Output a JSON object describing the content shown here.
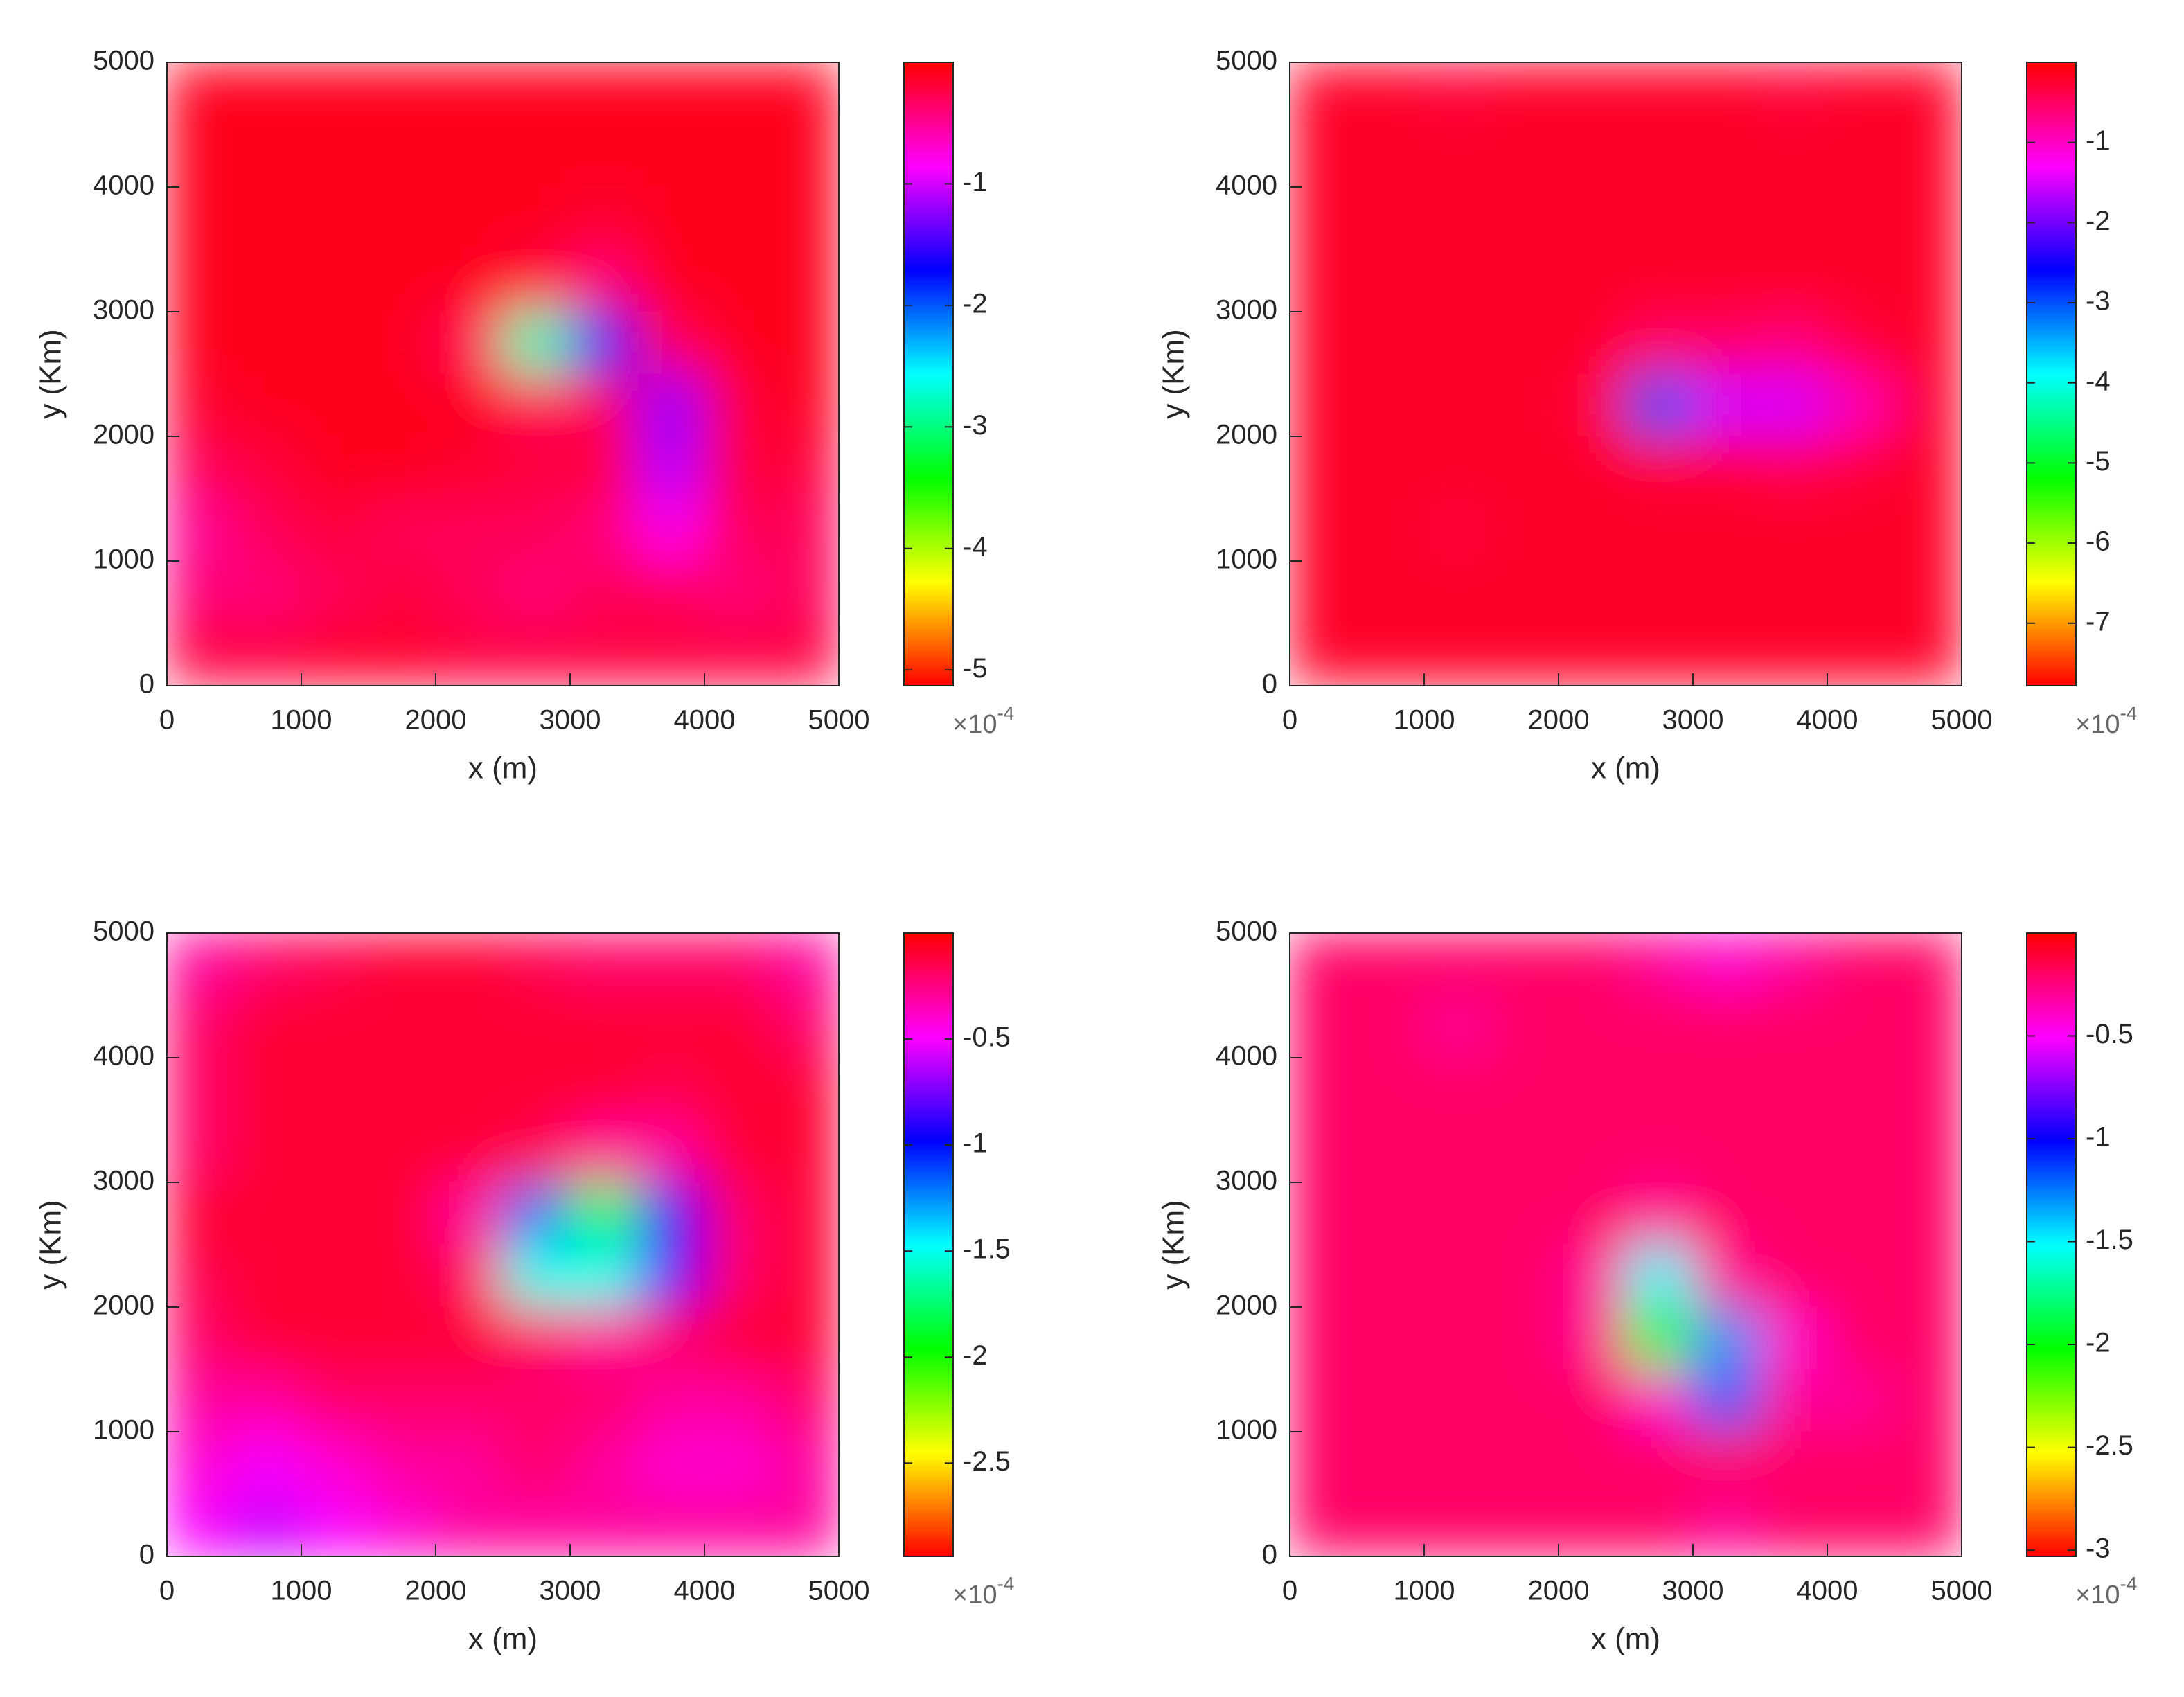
{
  "chart_data": [
    {
      "type": "heatmap",
      "x_label": "x (m)",
      "y_label": "y (Km)",
      "colormap": "hsv",
      "xlim": [
        0,
        5000
      ],
      "ylim": [
        0,
        5000
      ],
      "xticks": [
        0,
        1000,
        2000,
        3000,
        4000,
        5000
      ],
      "yticks": [
        0,
        1000,
        2000,
        3000,
        4000,
        5000
      ],
      "clim": [
        -5.13,
        0
      ],
      "cticks": [
        -1,
        -2,
        -3,
        -4,
        -5
      ],
      "colorbar_multiplier": "×10",
      "colorbar_exponent": "-4",
      "z": [
        [
          -0.1,
          -0.1,
          -0.1,
          -0.1,
          -0.1,
          -0.1,
          -0.1,
          -0.1,
          -0.1,
          -0.1
        ],
        [
          -0.1,
          -0.1,
          -0.1,
          -0.1,
          -0.1,
          -0.1,
          -0.1,
          -0.1,
          -0.1,
          -0.1
        ],
        [
          -0.1,
          -0.1,
          -0.1,
          -0.1,
          -0.1,
          -0.1,
          -0.15,
          -0.1,
          -0.1,
          -0.1
        ],
        [
          -0.1,
          -0.1,
          -0.1,
          -0.1,
          -0.1,
          -0.2,
          -0.4,
          -0.1,
          -0.1,
          -0.1
        ],
        [
          -0.1,
          -0.1,
          -0.1,
          -0.1,
          -0.3,
          -2.8,
          -1.8,
          -0.3,
          -0.1,
          -0.1
        ],
        [
          -0.15,
          -0.1,
          -0.1,
          -0.1,
          -0.1,
          -0.3,
          -0.3,
          -1.2,
          -0.2,
          -0.1
        ],
        [
          -0.3,
          -0.2,
          -0.1,
          -0.1,
          -0.15,
          -0.2,
          -0.2,
          -1.1,
          -0.2,
          -0.2
        ],
        [
          -0.5,
          -0.3,
          -0.2,
          -0.3,
          -0.3,
          -0.3,
          -0.4,
          -0.8,
          -0.3,
          -0.3
        ],
        [
          -0.4,
          -0.4,
          -0.3,
          -0.2,
          -0.3,
          -0.4,
          -0.3,
          -0.3,
          -0.4,
          -0.3
        ],
        [
          -0.2,
          -0.2,
          -0.15,
          -0.15,
          -0.2,
          -0.2,
          -0.2,
          -0.2,
          -0.2,
          -0.2
        ]
      ]
    },
    {
      "type": "heatmap",
      "x_label": "x (m)",
      "y_label": "y (Km)",
      "colormap": "hsv",
      "xlim": [
        0,
        5000
      ],
      "ylim": [
        0,
        5000
      ],
      "xticks": [
        0,
        1000,
        2000,
        3000,
        4000,
        5000
      ],
      "yticks": [
        0,
        1000,
        2000,
        3000,
        4000,
        5000
      ],
      "clim": [
        -7.78,
        0
      ],
      "cticks": [
        -1,
        -2,
        -3,
        -4,
        -5,
        -6,
        -7
      ],
      "colorbar_multiplier": "×10",
      "colorbar_exponent": "-4",
      "z": [
        [
          -0.2,
          -0.2,
          -0.3,
          -0.2,
          -0.2,
          -0.2,
          -0.2,
          -0.3,
          -0.2,
          -0.2
        ],
        [
          -0.2,
          -0.2,
          -0.2,
          -0.2,
          -0.2,
          -0.2,
          -0.2,
          -0.2,
          -0.2,
          -0.2
        ],
        [
          -0.2,
          -0.2,
          -0.2,
          -0.2,
          -0.2,
          -0.2,
          -0.2,
          -0.2,
          -0.2,
          -0.2
        ],
        [
          -0.2,
          -0.2,
          -0.2,
          -0.2,
          -0.2,
          -0.2,
          -0.2,
          -0.2,
          -0.2,
          -0.2
        ],
        [
          -0.2,
          -0.2,
          -0.2,
          -0.2,
          -0.2,
          -0.5,
          -0.5,
          -0.6,
          -0.3,
          -0.2
        ],
        [
          -0.2,
          -0.2,
          -0.2,
          -0.2,
          -0.3,
          -3.0,
          -1.5,
          -1.5,
          -0.9,
          -0.2
        ],
        [
          -0.2,
          -0.2,
          -0.2,
          -0.2,
          -0.2,
          -0.3,
          -0.3,
          -0.4,
          -0.3,
          -0.2
        ],
        [
          -0.2,
          -0.2,
          -0.3,
          -0.2,
          -0.2,
          -0.2,
          -0.2,
          -0.2,
          -0.2,
          -0.2
        ],
        [
          -0.2,
          -0.2,
          -0.2,
          -0.2,
          -0.2,
          -0.2,
          -0.2,
          -0.2,
          -0.2,
          -0.2
        ],
        [
          -0.2,
          -0.2,
          -0.2,
          -0.2,
          -0.2,
          -0.2,
          -0.2,
          -0.2,
          -0.2,
          -0.2
        ]
      ]
    },
    {
      "type": "heatmap",
      "x_label": "x (m)",
      "y_label": "y (Km)",
      "colormap": "hsv",
      "xlim": [
        0,
        5000
      ],
      "ylim": [
        0,
        5000
      ],
      "xticks": [
        0,
        1000,
        2000,
        3000,
        4000,
        5000
      ],
      "yticks": [
        0,
        1000,
        2000,
        3000,
        4000,
        5000
      ],
      "clim": [
        -2.94,
        0
      ],
      "cticks": [
        -0.5,
        -1,
        -1.5,
        -2,
        -2.5
      ],
      "colorbar_multiplier": "×10",
      "colorbar_exponent": "-4",
      "z": [
        [
          -0.3,
          -0.2,
          -0.15,
          -0.1,
          -0.1,
          -0.15,
          -0.2,
          -0.2,
          -0.2,
          -0.3
        ],
        [
          -0.2,
          -0.1,
          -0.1,
          -0.1,
          -0.1,
          -0.1,
          -0.1,
          -0.1,
          -0.1,
          -0.2
        ],
        [
          -0.2,
          -0.1,
          -0.1,
          -0.1,
          -0.1,
          -0.1,
          -0.1,
          -0.15,
          -0.1,
          -0.1
        ],
        [
          -0.2,
          -0.1,
          -0.1,
          -0.1,
          -0.1,
          -0.15,
          -0.3,
          -0.3,
          -0.1,
          -0.1
        ],
        [
          -0.1,
          -0.1,
          -0.1,
          -0.1,
          -0.3,
          -1.2,
          -1.8,
          -0.9,
          -0.2,
          -0.1
        ],
        [
          -0.15,
          -0.1,
          -0.1,
          -0.1,
          -0.2,
          -1.5,
          -1.5,
          -0.8,
          -0.2,
          -0.1
        ],
        [
          -0.2,
          -0.1,
          -0.1,
          -0.1,
          -0.1,
          -0.2,
          -0.3,
          -0.2,
          -0.1,
          -0.1
        ],
        [
          -0.3,
          -0.3,
          -0.2,
          -0.2,
          -0.2,
          -0.2,
          -0.2,
          -0.3,
          -0.3,
          -0.2
        ],
        [
          -0.4,
          -0.5,
          -0.4,
          -0.3,
          -0.3,
          -0.2,
          -0.3,
          -0.4,
          -0.4,
          -0.3
        ],
        [
          -0.5,
          -0.6,
          -0.5,
          -0.4,
          -0.3,
          -0.3,
          -0.3,
          -0.3,
          -0.3,
          -0.3
        ]
      ]
    },
    {
      "type": "heatmap",
      "x_label": "x (m)",
      "y_label": "y (Km)",
      "colormap": "hsv",
      "xlim": [
        0,
        5000
      ],
      "ylim": [
        0,
        5000
      ],
      "xticks": [
        0,
        1000,
        2000,
        3000,
        4000,
        5000
      ],
      "yticks": [
        0,
        1000,
        2000,
        3000,
        4000,
        5000
      ],
      "clim": [
        -3.03,
        0
      ],
      "cticks": [
        -0.5,
        -1,
        -1.5,
        -2,
        -2.5,
        -3
      ],
      "colorbar_multiplier": "×10",
      "colorbar_exponent": "-4",
      "z": [
        [
          -0.2,
          -0.2,
          -0.2,
          -0.2,
          -0.2,
          -0.3,
          -0.4,
          -0.3,
          -0.2,
          -0.2
        ],
        [
          -0.2,
          -0.2,
          -0.3,
          -0.2,
          -0.2,
          -0.2,
          -0.2,
          -0.2,
          -0.2,
          -0.2
        ],
        [
          -0.2,
          -0.2,
          -0.2,
          -0.2,
          -0.2,
          -0.2,
          -0.2,
          -0.2,
          -0.2,
          -0.2
        ],
        [
          -0.2,
          -0.2,
          -0.2,
          -0.2,
          -0.2,
          -0.2,
          -0.2,
          -0.2,
          -0.2,
          -0.2
        ],
        [
          -0.2,
          -0.2,
          -0.2,
          -0.2,
          -0.2,
          -0.3,
          -0.2,
          -0.2,
          -0.2,
          -0.2
        ],
        [
          -0.2,
          -0.2,
          -0.2,
          -0.2,
          -0.3,
          -1.5,
          -0.3,
          -0.2,
          -0.2,
          -0.2
        ],
        [
          -0.2,
          -0.2,
          -0.2,
          -0.2,
          -0.3,
          -2.0,
          -1.3,
          -0.4,
          -0.2,
          -0.2
        ],
        [
          -0.2,
          -0.2,
          -0.2,
          -0.2,
          -0.2,
          -0.4,
          -1.2,
          -0.3,
          -0.3,
          -0.2
        ],
        [
          -0.2,
          -0.2,
          -0.2,
          -0.2,
          -0.2,
          -0.2,
          -0.2,
          -0.2,
          -0.2,
          -0.2
        ],
        [
          -0.2,
          -0.2,
          -0.2,
          -0.2,
          -0.2,
          -0.2,
          -0.3,
          -0.2,
          -0.2,
          -0.2
        ]
      ]
    }
  ]
}
